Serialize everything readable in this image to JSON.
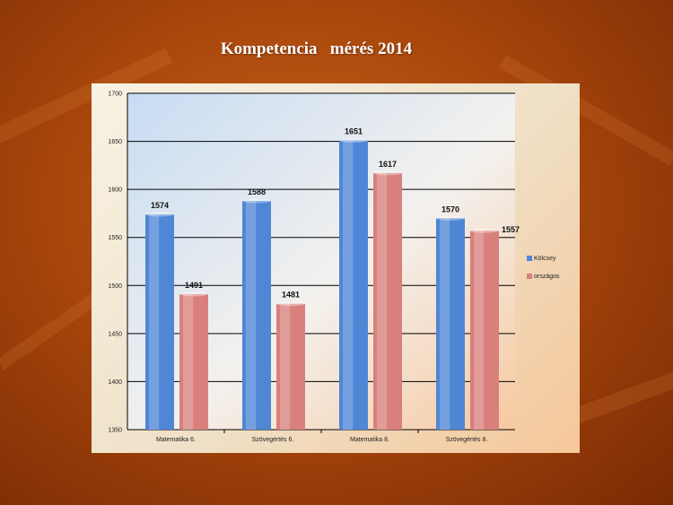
{
  "slide": {
    "title": "Kompetencia   mérés 2014"
  },
  "chart_data": {
    "type": "bar",
    "categories": [
      "Matematika 6.",
      "Szövegértés 6.",
      "Matematika 8.",
      "Szövegértés 8."
    ],
    "series": [
      {
        "name": "Kölcsey",
        "values": [
          1574,
          1588,
          1651,
          1570
        ],
        "color": "#4f86d6"
      },
      {
        "name": "országos",
        "values": [
          1491,
          1481,
          1617,
          1557
        ],
        "color": "#d97f7c"
      }
    ],
    "ylim": [
      1350,
      1700
    ],
    "yticks": [
      "1700",
      "1650",
      "1600",
      "1550",
      "1500",
      "1450",
      "1400",
      "1350"
    ],
    "grid": true,
    "legend_position": "right"
  }
}
